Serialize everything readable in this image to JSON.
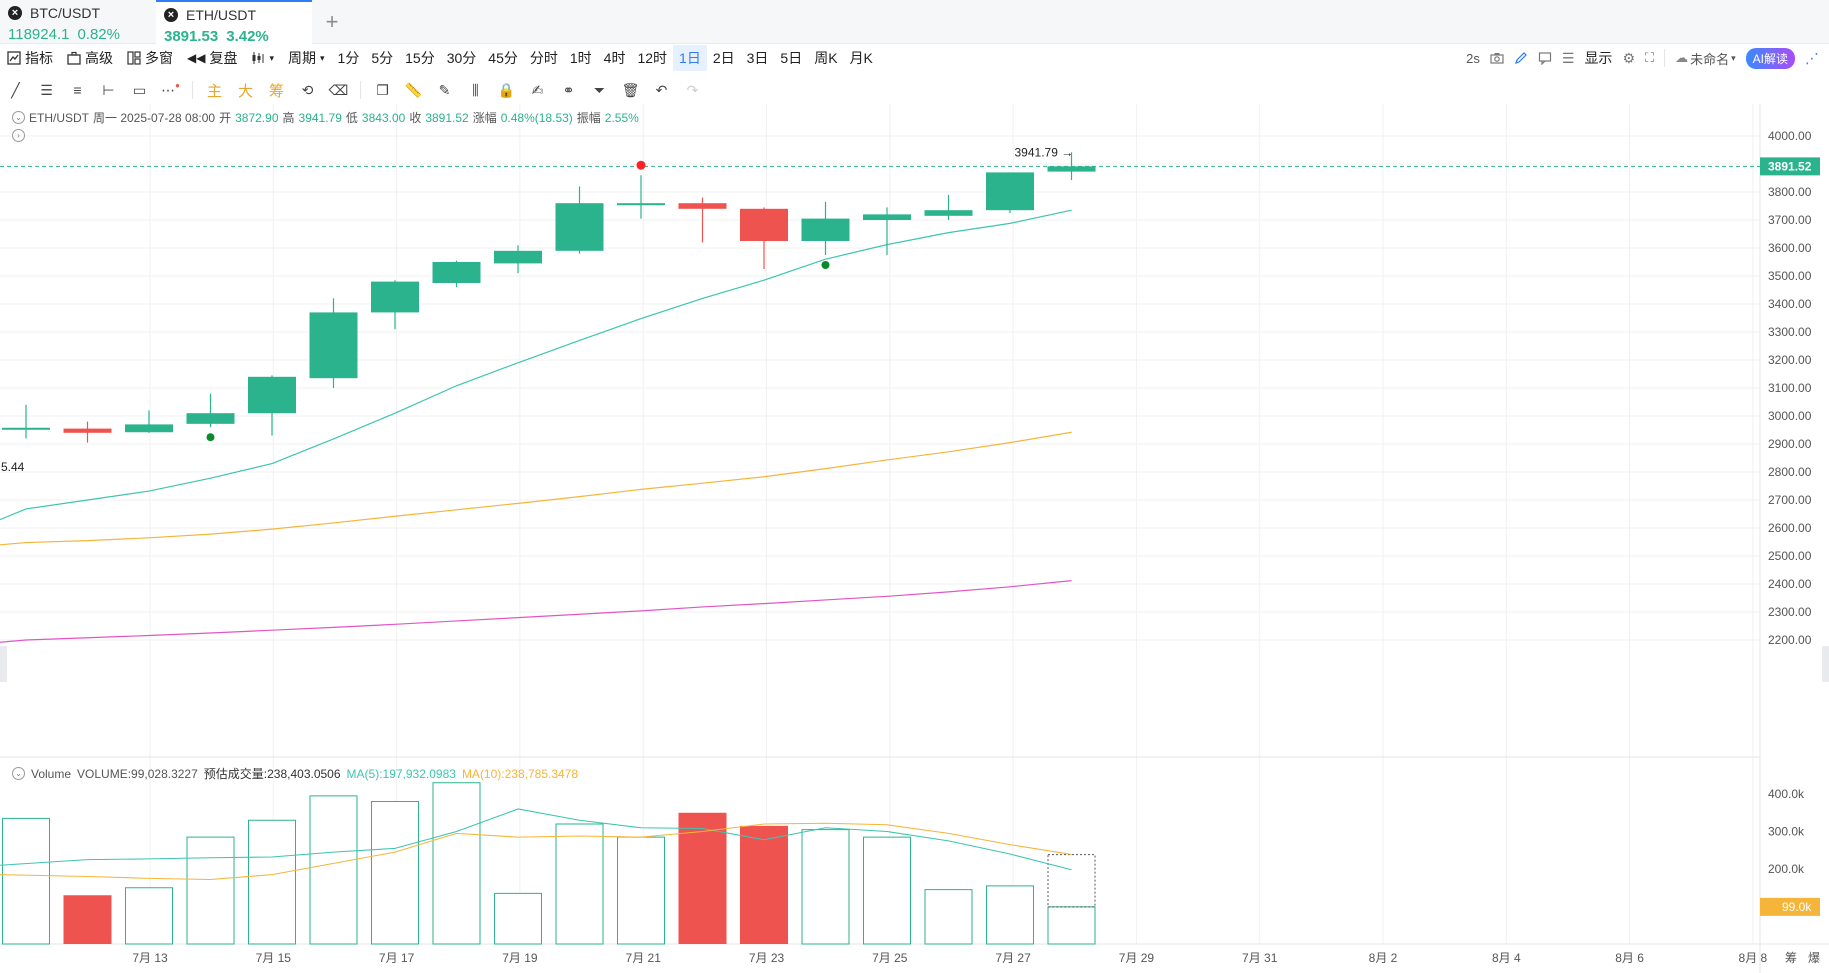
{
  "tabs": [
    {
      "symbol": "BTC/USDT",
      "price": "118924.1",
      "change": "0.82%"
    },
    {
      "symbol": "ETH/USDT",
      "price": "3891.53",
      "change": "3.42%"
    }
  ],
  "toolbar": {
    "indicators": "指标",
    "advanced": "高级",
    "multi_window": "多窗",
    "replay": "复盘",
    "period": "周期",
    "periods": [
      "1分",
      "5分",
      "15分",
      "30分",
      "45分",
      "分时",
      "1时",
      "4时",
      "12时",
      "1日",
      "2日",
      "3日",
      "5日",
      "周K",
      "月K"
    ],
    "selected_period": "1日",
    "refresh": "2s",
    "display": "显示",
    "layout_name": "未命名",
    "ai_button": "AI解读"
  },
  "drawing_tools": {
    "main": "主",
    "big": "大",
    "chips": "筹"
  },
  "ohlc_info": {
    "symbol": "ETH/USDT",
    "date": "周一 2025-07-28 08:00",
    "open_label": "开",
    "open": "3872.90",
    "high_label": "高",
    "high": "3941.79",
    "low_label": "低",
    "low": "3843.00",
    "close_label": "收",
    "close": "3891.52",
    "change_label": "涨幅",
    "change": "0.48%(18.53)",
    "amplitude_label": "振幅",
    "amplitude": "2.55%"
  },
  "volume_info": {
    "title": "Volume",
    "volume": "VOLUME:99,028.3227",
    "estimated": "预估成交量:238,403.0506",
    "ma5": "MA(5):197,932.0983",
    "ma10": "MA(10):238,785.3478"
  },
  "colors": {
    "up": "#2ab38c",
    "down": "#ef5350",
    "ma_short": "#3cc5b0",
    "ma_mid": "#f5b53b",
    "ma_long": "#e056c8",
    "grid": "#f0f1f3"
  },
  "chart_data": {
    "type": "candlestick",
    "price_axis": {
      "ticks": [
        4000,
        3900,
        3800,
        3700,
        3600,
        3500,
        3400,
        3300,
        3200,
        3100,
        3000,
        2900,
        2800,
        2700,
        2600,
        2500,
        2400,
        2300,
        2200
      ],
      "tick_labels": [
        "4000.00",
        "3900.00",
        "3800.00",
        "3700.00",
        "3600.00",
        "3500.00",
        "3400.00",
        "3300.00",
        "3200.00",
        "3100.00",
        "3000.00",
        "2900.00",
        "2800.00",
        "2700.00",
        "2600.00",
        "2500.00",
        "2400.00",
        "2300.00",
        "2200.00"
      ]
    },
    "current_price_label": "3891.52",
    "high_marker": "3941.79",
    "left_edge_label": "5.44",
    "x_labels": [
      "7月 13",
      "7月 15",
      "7月 17",
      "7月 19",
      "7月 21",
      "7月 23",
      "7月 25",
      "7月 27",
      "7月 29",
      "7月 31",
      "8月 2",
      "8月 4",
      "8月 6",
      "8月 8"
    ],
    "candles": [
      {
        "o": 2955,
        "h": 3040,
        "l": 2920,
        "c": 2958
      },
      {
        "o": 2955,
        "h": 2980,
        "l": 2905,
        "c": 2940
      },
      {
        "o": 2942,
        "h": 3020,
        "l": 2940,
        "c": 2970
      },
      {
        "o": 2972,
        "h": 3080,
        "l": 2960,
        "c": 3010
      },
      {
        "o": 3010,
        "h": 3145,
        "l": 2930,
        "c": 3140
      },
      {
        "o": 3135,
        "h": 3420,
        "l": 3100,
        "c": 3370
      },
      {
        "o": 3370,
        "h": 3485,
        "l": 3310,
        "c": 3480
      },
      {
        "o": 3475,
        "h": 3555,
        "l": 3460,
        "c": 3550
      },
      {
        "o": 3545,
        "h": 3610,
        "l": 3510,
        "c": 3590
      },
      {
        "o": 3590,
        "h": 3820,
        "l": 3580,
        "c": 3760
      },
      {
        "o": 3755,
        "h": 3860,
        "l": 3705,
        "c": 3760
      },
      {
        "o": 3760,
        "h": 3780,
        "l": 3620,
        "c": 3740
      },
      {
        "o": 3740,
        "h": 3745,
        "l": 3525,
        "c": 3625
      },
      {
        "o": 3625,
        "h": 3765,
        "l": 3575,
        "c": 3705
      },
      {
        "o": 3700,
        "h": 3745,
        "l": 3575,
        "c": 3720
      },
      {
        "o": 3715,
        "h": 3790,
        "l": 3700,
        "c": 3735
      },
      {
        "o": 3735,
        "h": 3870,
        "l": 3725,
        "c": 3870
      },
      {
        "o": 3872.9,
        "h": 3941.79,
        "l": 3843,
        "c": 3891.52
      }
    ],
    "ma_lines": [
      {
        "name": "MA short",
        "values": [
          2630,
          2668,
          2700,
          2732,
          2778,
          2830,
          2918,
          3010,
          3108,
          3190,
          3270,
          3348,
          3420,
          3485,
          3560,
          3612,
          3655,
          3688,
          3735
        ]
      },
      {
        "name": "MA mid",
        "values": [
          2540,
          2548,
          2555,
          2565,
          2578,
          2596,
          2618,
          2642,
          2665,
          2688,
          2712,
          2738,
          2760,
          2783,
          2812,
          2843,
          2872,
          2905,
          2942
        ]
      },
      {
        "name": "MA long",
        "values": [
          2192,
          2200,
          2208,
          2216,
          2225,
          2235,
          2245,
          2256,
          2268,
          2280,
          2292,
          2304,
          2318,
          2330,
          2343,
          2356,
          2372,
          2390,
          2412
        ]
      }
    ],
    "markers": [
      {
        "candle": 3,
        "type": "buy"
      },
      {
        "candle": 10,
        "type": "sell"
      },
      {
        "candle": 13,
        "type": "buy"
      }
    ],
    "volume_axis": {
      "ticks": [
        400000,
        300000,
        200000
      ],
      "tick_labels": [
        "400.0k",
        "300.0k",
        "200.0k"
      ]
    },
    "current_volume_label": "99.0k",
    "volumes": [
      335000,
      130000,
      150000,
      285000,
      330000,
      395000,
      380000,
      430000,
      135000,
      320000,
      285000,
      350000,
      315000,
      305000,
      285000,
      145000,
      155000,
      99028
    ],
    "volume_estimated": 238403,
    "volume_ma5": [
      210000,
      225000,
      227000,
      230000,
      232000,
      245000,
      255000,
      300000,
      360000,
      330000,
      310000,
      308000,
      278000,
      310000,
      300000,
      275000,
      240000,
      197932
    ],
    "volume_ma10": [
      185000,
      180000,
      175000,
      172000,
      185000,
      215000,
      245000,
      295000,
      285000,
      288000,
      285000,
      300000,
      320000,
      322000,
      318000,
      295000,
      265000,
      238785
    ]
  }
}
